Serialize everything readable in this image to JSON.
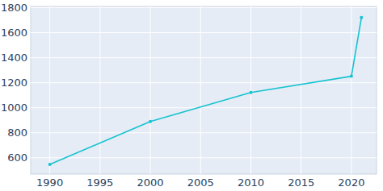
{
  "chart_data": {
    "type": "line",
    "x": [
      1990,
      2000,
      2010,
      2020,
      2021
    ],
    "values": [
      548,
      890,
      1122,
      1252,
      1722
    ],
    "color": "#17c3cf",
    "marker": "circle",
    "xlim": [
      1988.1,
      2022.5
    ],
    "xticks": [
      1990,
      1995,
      2000,
      2005,
      2010,
      2015,
      2020
    ],
    "ylim": [
      470,
      1810
    ],
    "yticks": [
      600,
      800,
      1000,
      1200,
      1400,
      1600,
      1800
    ],
    "grid": true
  }
}
